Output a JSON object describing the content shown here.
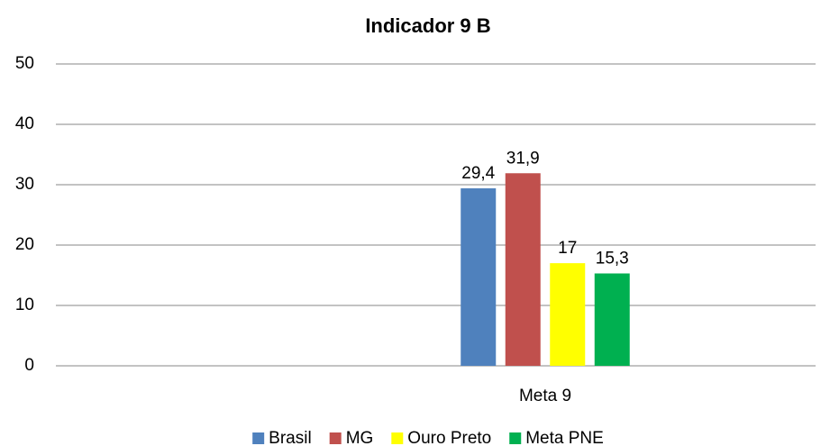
{
  "chart_data": {
    "type": "bar",
    "title": "Indicador 9 B",
    "categories": [
      "Meta 9"
    ],
    "series": [
      {
        "name": "Brasil",
        "color": "#4f81bd",
        "values": [
          29.4
        ],
        "value_labels": [
          "29,4"
        ]
      },
      {
        "name": "MG",
        "color": "#c0504d",
        "values": [
          31.9
        ],
        "value_labels": [
          "31,9"
        ]
      },
      {
        "name": "Ouro Preto",
        "color": "#ffff00",
        "values": [
          17
        ],
        "value_labels": [
          "17"
        ]
      },
      {
        "name": "Meta PNE",
        "color": "#00b050",
        "values": [
          15.3
        ],
        "value_labels": [
          "15,3"
        ]
      }
    ],
    "ylim": [
      0,
      50
    ],
    "yticks": [
      0,
      10,
      20,
      30,
      40,
      50
    ],
    "grid": true,
    "legend": "bottom"
  }
}
